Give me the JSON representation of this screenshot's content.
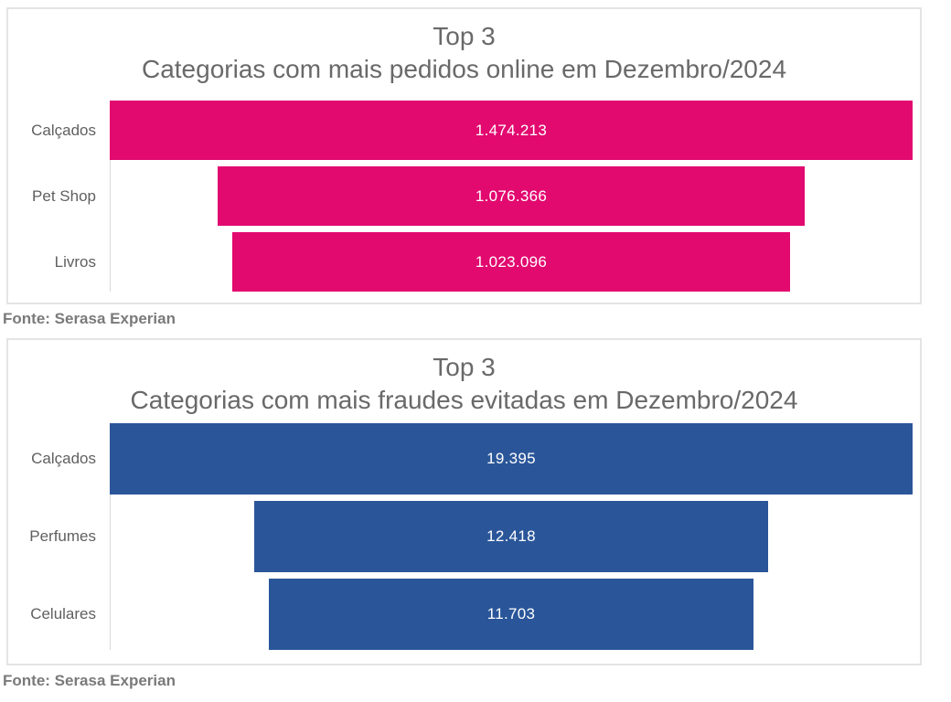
{
  "ui": {
    "panel_border_color": "#e4e4e4",
    "axis_color": "#d9d9d9",
    "title_color": "#696969",
    "category_label_color": "#606060",
    "value_text_color": "#ffffff",
    "source_text_color": "#7a7a7a"
  },
  "chart_data": [
    {
      "type": "bar",
      "orientation": "horizontal-centered-funnel",
      "title": "Top 3",
      "subtitle": "Categorias com mais pedidos online em Dezembro/2024",
      "categories": [
        "Calçados",
        "Pet Shop",
        "Livros"
      ],
      "values": [
        1474213,
        1076366,
        1023096
      ],
      "value_labels": [
        "1.474.213",
        "1.076.366",
        "1.023.096"
      ],
      "bar_color": "#e2096f",
      "legend": "none",
      "grid": "off",
      "source": "Fonte: Serasa Experian"
    },
    {
      "type": "bar",
      "orientation": "horizontal-centered-funnel",
      "title": "Top 3",
      "subtitle": "Categorias com mais fraudes evitadas em Dezembro/2024",
      "categories": [
        "Calçados",
        "Perfumes",
        "Celulares"
      ],
      "values": [
        19395,
        12418,
        11703
      ],
      "value_labels": [
        "19.395",
        "12.418",
        "11.703"
      ],
      "bar_color": "#2a5699",
      "legend": "none",
      "grid": "off",
      "source": "Fonte: Serasa Experian"
    }
  ]
}
